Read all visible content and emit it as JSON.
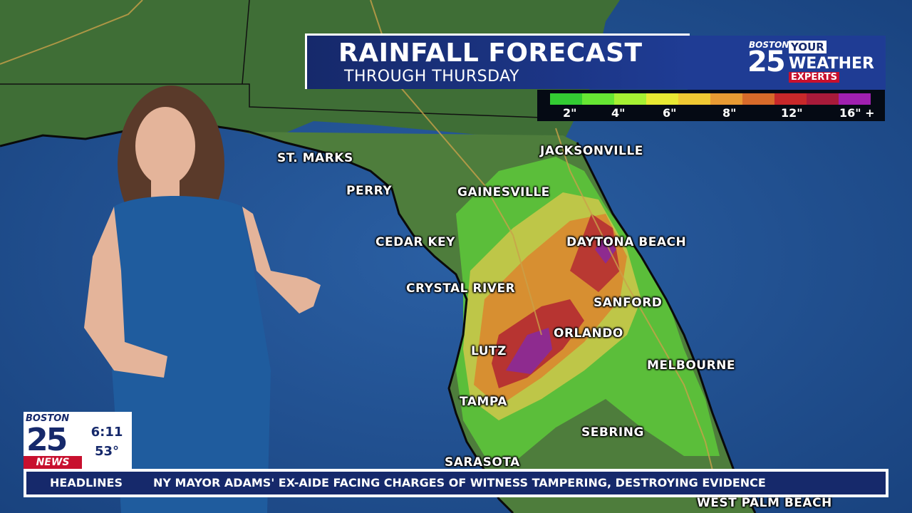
{
  "title": {
    "main": "RAINFALL FORECAST",
    "sub": "THROUGH THURSDAY"
  },
  "logo": {
    "station": "BOSTON",
    "number": "25",
    "line1": "YOUR",
    "line2": "WEATHER",
    "line3": "EXPERTS"
  },
  "legend": {
    "labels": [
      "2\"",
      "4\"",
      "6\"",
      "8\"",
      "12\"",
      "16\" +"
    ],
    "colors": [
      "#33cc33",
      "#66e633",
      "#a6f033",
      "#e8e833",
      "#f0c833",
      "#e89a33",
      "#d86a2a",
      "#c8282a",
      "#a81a3a",
      "#a020b0"
    ]
  },
  "cities": {
    "st_marks": "ST. MARKS",
    "perry": "PERRY",
    "gainesville": "GAINESVILLE",
    "jacksonville": "JACKSONVILLE",
    "cedar_key": "CEDAR KEY",
    "daytona_beach": "DAYTONA BEACH",
    "crystal_river": "CRYSTAL RIVER",
    "sanford": "SANFORD",
    "orlando": "ORLANDO",
    "lutz": "LUTZ",
    "melbourne": "MELBOURNE",
    "tampa": "TAMPA",
    "sebring": "SEBRING",
    "sarasota": "SARASOTA",
    "west_palm_beach": "WEST PALM BEACH"
  },
  "station_bug": {
    "station": "BOSTON",
    "number": "25",
    "news": "NEWS",
    "time": "6:11",
    "temp": "53°"
  },
  "ticker": {
    "label": "HEADLINES",
    "text": "NY MAYOR ADAMS' EX-AIDE FACING CHARGES OF WITNESS TAMPERING, DESTROYING EVIDENCE"
  },
  "colors": {
    "ocean": "#1e4d8c",
    "brand_blue": "#16296b",
    "brand_red": "#c8102e"
  }
}
